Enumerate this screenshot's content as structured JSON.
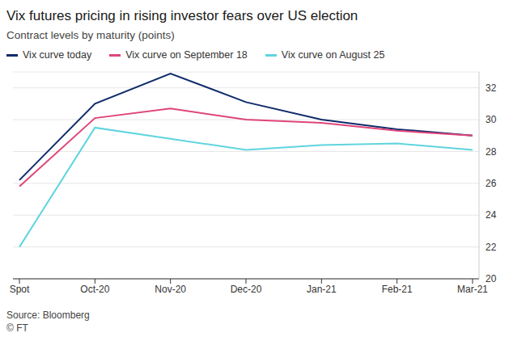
{
  "chart_data": {
    "type": "line",
    "title": "Vix futures pricing in rising investor fears over US election",
    "subtitle": "Contract levels by maturity (points)",
    "source": "Source: Bloomberg",
    "credit": "© FT",
    "categories": [
      "Spot",
      "Oct-20",
      "Nov-20",
      "Dec-20",
      "Jan-21",
      "Feb-21",
      "Mar-21"
    ],
    "series": [
      {
        "name": "Vix curve today",
        "color": "#0f2b6b",
        "values": [
          26.2,
          31.0,
          32.9,
          31.1,
          30.0,
          29.4,
          29.0
        ]
      },
      {
        "name": "Vix curve on September 18",
        "color": "#df4579",
        "values": [
          25.8,
          30.1,
          30.7,
          30.0,
          29.8,
          29.3,
          29.0
        ]
      },
      {
        "name": "Vix curve on August 25",
        "color": "#5fd4df",
        "values": [
          22.0,
          29.5,
          28.8,
          28.1,
          28.4,
          28.5,
          28.1
        ]
      }
    ],
    "ylim": [
      20,
      33
    ],
    "yticks": [
      20,
      22,
      24,
      26,
      28,
      30,
      32
    ],
    "grid": true,
    "legend": "top"
  }
}
